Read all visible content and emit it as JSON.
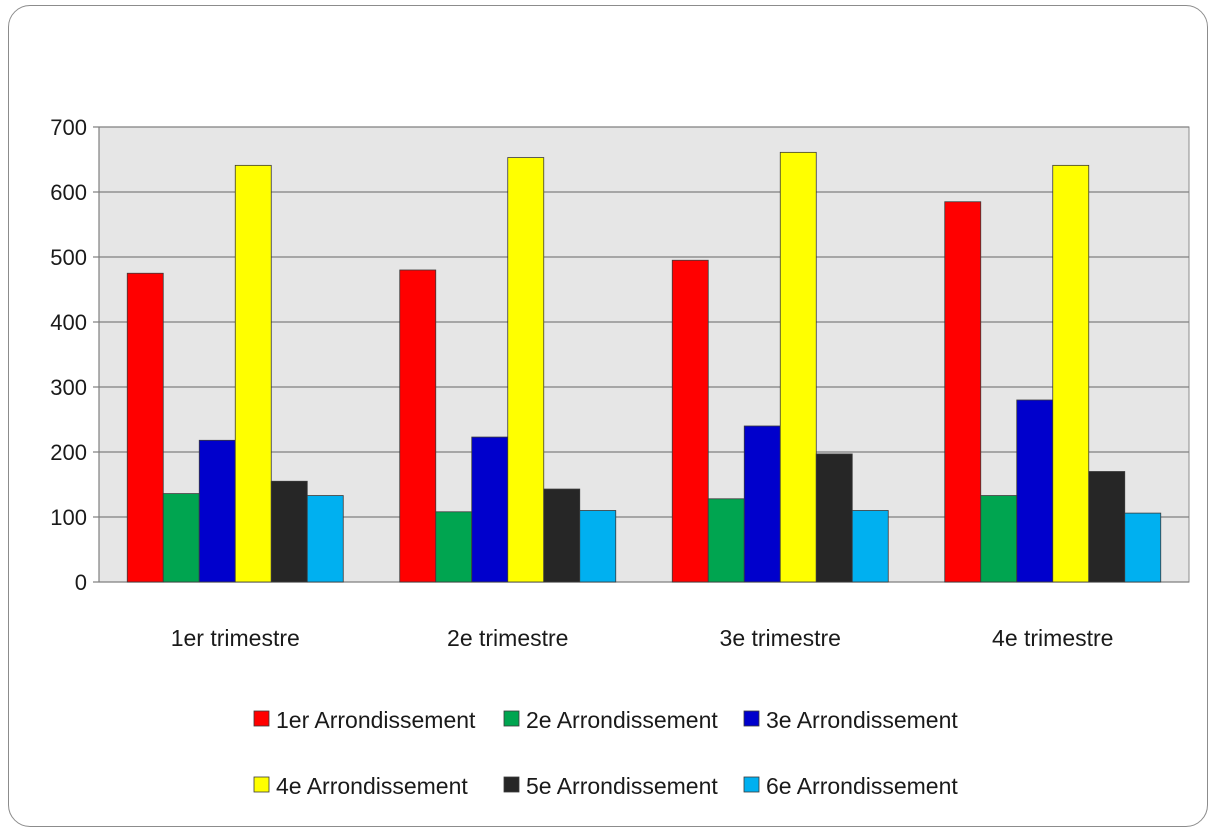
{
  "chart_data": {
    "type": "bar",
    "title": "",
    "xlabel": "",
    "ylabel": "",
    "ylim": [
      0,
      700
    ],
    "yticks": [
      0,
      100,
      200,
      300,
      400,
      500,
      600,
      700
    ],
    "grid": true,
    "legend_position": "bottom",
    "plot_background": "#e6e6e6",
    "categories": [
      "1er trimestre",
      "2e trimestre",
      "3e trimestre",
      "4e trimestre"
    ],
    "series": [
      {
        "name": "1er Arrondissement",
        "color": "#ff0000",
        "values": [
          475,
          480,
          495,
          585
        ]
      },
      {
        "name": "2e Arrondissement",
        "color": "#00a550",
        "values": [
          136,
          108,
          128,
          133
        ]
      },
      {
        "name": "3e Arrondissement",
        "color": "#0000cc",
        "values": [
          218,
          223,
          240,
          280
        ]
      },
      {
        "name": "4e Arrondissement",
        "color": "#ffff00",
        "values": [
          641,
          653,
          661,
          641
        ]
      },
      {
        "name": "5e Arrondissement",
        "color": "#262626",
        "values": [
          155,
          143,
          197,
          170
        ]
      },
      {
        "name": "6e Arrondissement",
        "color": "#00b0f0",
        "values": [
          133,
          110,
          110,
          106
        ]
      }
    ]
  }
}
